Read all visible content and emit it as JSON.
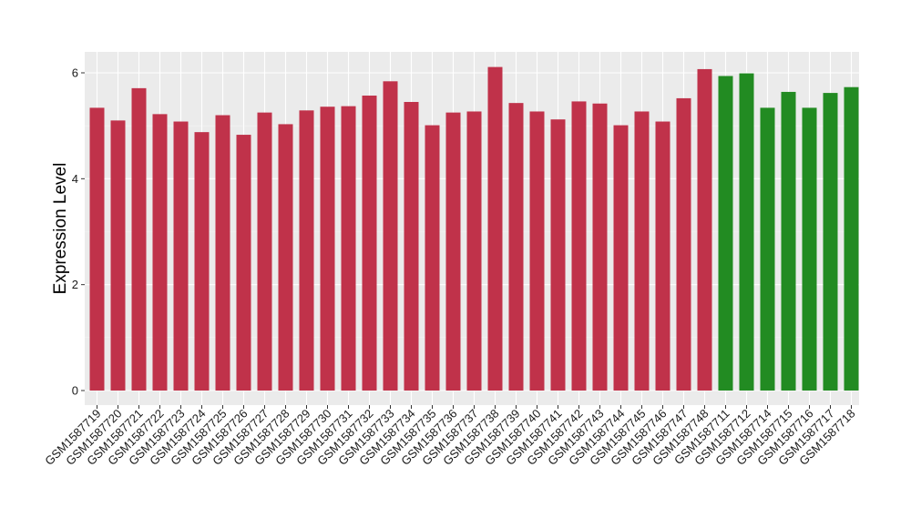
{
  "chart_data": {
    "type": "bar",
    "title": "",
    "xlabel": "",
    "ylabel": "Expression Level",
    "ylim": [
      0,
      6.3
    ],
    "yticks": [
      0,
      2,
      4,
      6
    ],
    "grid": true,
    "categories": [
      "GSM1587719",
      "GSM1587720",
      "GSM1587721",
      "GSM1587722",
      "GSM1587723",
      "GSM1587724",
      "GSM1587725",
      "GSM1587726",
      "GSM1587727",
      "GSM1587728",
      "GSM1587729",
      "GSM1587730",
      "GSM1587731",
      "GSM1587732",
      "GSM1587733",
      "GSM1587734",
      "GSM1587735",
      "GSM1587736",
      "GSM1587737",
      "GSM1587738",
      "GSM1587739",
      "GSM1587740",
      "GSM1587741",
      "GSM1587742",
      "GSM1587743",
      "GSM1587744",
      "GSM1587745",
      "GSM1587746",
      "GSM1587747",
      "GSM1587748",
      "GSM1587711",
      "GSM1587712",
      "GSM1587714",
      "GSM1587715",
      "GSM1587716",
      "GSM1587717",
      "GSM1587718"
    ],
    "values": [
      5.34,
      5.1,
      5.71,
      5.22,
      5.08,
      4.88,
      5.2,
      4.83,
      5.25,
      5.03,
      5.29,
      5.36,
      5.37,
      5.57,
      5.84,
      5.45,
      5.01,
      5.25,
      5.27,
      6.11,
      5.43,
      5.27,
      5.12,
      5.46,
      5.42,
      5.01,
      5.27,
      5.08,
      5.52,
      6.07,
      5.94,
      5.99,
      5.34,
      5.64,
      5.34,
      5.62,
      5.73
    ],
    "bar_colors": [
      "#c0324a",
      "#c0324a",
      "#c0324a",
      "#c0324a",
      "#c0324a",
      "#c0324a",
      "#c0324a",
      "#c0324a",
      "#c0324a",
      "#c0324a",
      "#c0324a",
      "#c0324a",
      "#c0324a",
      "#c0324a",
      "#c0324a",
      "#c0324a",
      "#c0324a",
      "#c0324a",
      "#c0324a",
      "#c0324a",
      "#c0324a",
      "#c0324a",
      "#c0324a",
      "#c0324a",
      "#c0324a",
      "#c0324a",
      "#c0324a",
      "#c0324a",
      "#c0324a",
      "#c0324a",
      "#228b22",
      "#228b22",
      "#228b22",
      "#228b22",
      "#228b22",
      "#228b22",
      "#228b22"
    ],
    "panel_color": "#ebebeb"
  }
}
